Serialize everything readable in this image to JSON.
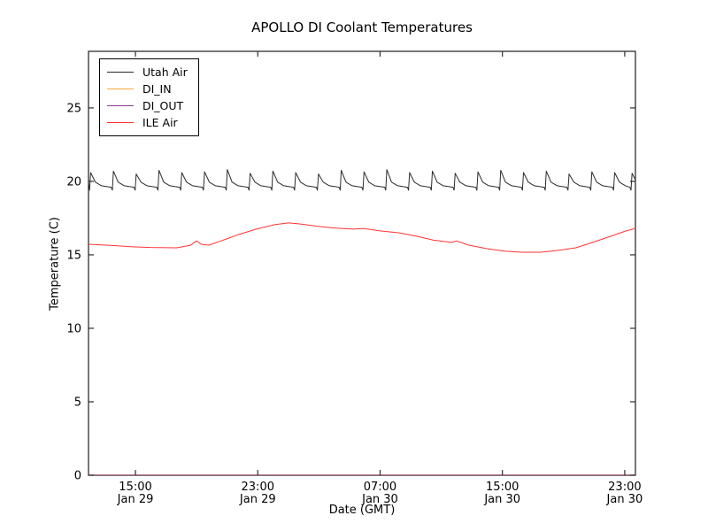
{
  "window": {
    "background": "#ffffff"
  },
  "chart_data": {
    "type": "line",
    "title": "APOLLO DI Coolant Temperatures",
    "xlabel": "Date (GMT)",
    "ylabel": "Temperature (C)",
    "x_unit": "hours since Jan 29 00:00 GMT",
    "xlim": [
      11.93,
      47.7
    ],
    "ylim": [
      0,
      28.85
    ],
    "grid": false,
    "legend_position": "upper-left",
    "axis_color": "#2e2e2e",
    "x_ticks": [
      {
        "value": 15,
        "line1": "15:00",
        "line2": "Jan 29"
      },
      {
        "value": 23,
        "line1": "23:00",
        "line2": "Jan 29"
      },
      {
        "value": 31,
        "line1": "07:00",
        "line2": "Jan 30"
      },
      {
        "value": 39,
        "line1": "15:00",
        "line2": "Jan 30"
      },
      {
        "value": 47,
        "line1": "23:00",
        "line2": "Jan 30"
      }
    ],
    "y_ticks": [
      0,
      5,
      10,
      15,
      20,
      25
    ],
    "series": [
      {
        "name": "Utah Air",
        "color": "#2b2b2b",
        "width": 1,
        "opacity": 1,
        "points": [
          [
            11.93,
            19.9
          ],
          [
            12.0,
            19.4
          ],
          [
            12.07,
            20.6
          ],
          [
            12.38,
            19.95
          ],
          [
            12.78,
            19.7
          ],
          [
            13.42,
            19.6
          ],
          [
            13.49,
            19.4
          ],
          [
            13.56,
            20.7
          ],
          [
            13.87,
            19.95
          ],
          [
            14.27,
            19.7
          ],
          [
            14.91,
            19.6
          ],
          [
            14.98,
            19.4
          ],
          [
            15.05,
            20.5
          ],
          [
            15.36,
            19.95
          ],
          [
            15.76,
            19.7
          ],
          [
            16.4,
            19.6
          ],
          [
            16.47,
            19.4
          ],
          [
            16.54,
            20.75
          ],
          [
            16.85,
            19.95
          ],
          [
            17.25,
            19.7
          ],
          [
            17.89,
            19.6
          ],
          [
            17.96,
            19.4
          ],
          [
            18.03,
            20.6
          ],
          [
            18.34,
            19.95
          ],
          [
            18.74,
            19.7
          ],
          [
            19.38,
            19.6
          ],
          [
            19.45,
            19.4
          ],
          [
            19.52,
            20.65
          ],
          [
            19.83,
            19.95
          ],
          [
            20.23,
            19.7
          ],
          [
            20.87,
            19.6
          ],
          [
            20.94,
            19.4
          ],
          [
            21.01,
            20.8
          ],
          [
            21.32,
            19.95
          ],
          [
            21.72,
            19.7
          ],
          [
            22.36,
            19.6
          ],
          [
            22.43,
            19.4
          ],
          [
            22.5,
            20.55
          ],
          [
            22.81,
            19.95
          ],
          [
            23.21,
            19.7
          ],
          [
            23.85,
            19.6
          ],
          [
            23.92,
            19.4
          ],
          [
            23.99,
            20.7
          ],
          [
            24.3,
            19.95
          ],
          [
            24.7,
            19.7
          ],
          [
            25.34,
            19.6
          ],
          [
            25.41,
            19.4
          ],
          [
            25.48,
            20.6
          ],
          [
            25.79,
            19.95
          ],
          [
            26.19,
            19.7
          ],
          [
            26.83,
            19.6
          ],
          [
            26.9,
            19.4
          ],
          [
            26.97,
            20.5
          ],
          [
            27.28,
            19.95
          ],
          [
            27.68,
            19.7
          ],
          [
            28.32,
            19.6
          ],
          [
            28.39,
            19.4
          ],
          [
            28.46,
            20.75
          ],
          [
            28.77,
            19.95
          ],
          [
            29.17,
            19.7
          ],
          [
            29.81,
            19.6
          ],
          [
            29.88,
            19.4
          ],
          [
            29.95,
            20.65
          ],
          [
            30.26,
            19.95
          ],
          [
            30.66,
            19.7
          ],
          [
            31.3,
            19.6
          ],
          [
            31.37,
            19.4
          ],
          [
            31.44,
            20.8
          ],
          [
            31.75,
            19.95
          ],
          [
            32.15,
            19.7
          ],
          [
            32.79,
            19.6
          ],
          [
            32.86,
            19.4
          ],
          [
            32.93,
            20.6
          ],
          [
            33.24,
            19.95
          ],
          [
            33.64,
            19.7
          ],
          [
            34.28,
            19.6
          ],
          [
            34.35,
            19.4
          ],
          [
            34.42,
            20.7
          ],
          [
            34.73,
            19.95
          ],
          [
            35.13,
            19.7
          ],
          [
            35.77,
            19.6
          ],
          [
            35.84,
            19.4
          ],
          [
            35.91,
            20.55
          ],
          [
            36.22,
            19.95
          ],
          [
            36.62,
            19.7
          ],
          [
            37.26,
            19.6
          ],
          [
            37.33,
            19.4
          ],
          [
            37.4,
            20.65
          ],
          [
            37.71,
            19.95
          ],
          [
            38.11,
            19.7
          ],
          [
            38.75,
            19.6
          ],
          [
            38.82,
            19.4
          ],
          [
            38.89,
            20.75
          ],
          [
            39.2,
            19.95
          ],
          [
            39.6,
            19.7
          ],
          [
            40.24,
            19.6
          ],
          [
            40.31,
            19.4
          ],
          [
            40.38,
            20.6
          ],
          [
            40.69,
            19.95
          ],
          [
            41.09,
            19.7
          ],
          [
            41.73,
            19.6
          ],
          [
            41.8,
            19.4
          ],
          [
            41.87,
            20.7
          ],
          [
            42.18,
            19.95
          ],
          [
            42.58,
            19.7
          ],
          [
            43.22,
            19.6
          ],
          [
            43.29,
            19.4
          ],
          [
            43.36,
            20.5
          ],
          [
            43.67,
            19.95
          ],
          [
            44.07,
            19.7
          ],
          [
            44.71,
            19.6
          ],
          [
            44.78,
            19.4
          ],
          [
            44.85,
            20.65
          ],
          [
            45.16,
            19.95
          ],
          [
            45.56,
            19.7
          ],
          [
            46.2,
            19.6
          ],
          [
            46.27,
            19.4
          ],
          [
            46.34,
            20.6
          ],
          [
            46.65,
            19.95
          ],
          [
            47.05,
            19.7
          ],
          [
            47.34,
            19.6
          ],
          [
            47.41,
            19.4
          ],
          [
            47.48,
            20.55
          ],
          [
            47.7,
            20.1
          ]
        ]
      },
      {
        "name": "DI_IN",
        "color": "#ffa643",
        "width": 1.6,
        "opacity": 1,
        "points": [
          [
            11.93,
            0
          ],
          [
            47.7,
            0
          ]
        ]
      },
      {
        "name": "DI_OUT",
        "color": "#8a3b8f",
        "width": 1.3,
        "opacity": 0.85,
        "points": [
          [
            11.93,
            0
          ],
          [
            47.7,
            0
          ]
        ]
      },
      {
        "name": "ILE Air",
        "color": "#ff3333",
        "width": 1,
        "opacity": 1,
        "points": [
          [
            11.93,
            15.72
          ],
          [
            13.1,
            15.66
          ],
          [
            14.8,
            15.55
          ],
          [
            16.0,
            15.5
          ],
          [
            17.7,
            15.48
          ],
          [
            18.6,
            15.65
          ],
          [
            19.0,
            15.95
          ],
          [
            19.3,
            15.72
          ],
          [
            19.8,
            15.66
          ],
          [
            20.6,
            15.95
          ],
          [
            21.8,
            16.4
          ],
          [
            22.9,
            16.75
          ],
          [
            24.1,
            17.05
          ],
          [
            25.0,
            17.17
          ],
          [
            25.8,
            17.1
          ],
          [
            27.0,
            16.93
          ],
          [
            28.1,
            16.82
          ],
          [
            29.3,
            16.75
          ],
          [
            29.9,
            16.8
          ],
          [
            31.0,
            16.63
          ],
          [
            32.2,
            16.5
          ],
          [
            33.4,
            16.27
          ],
          [
            34.5,
            16.0
          ],
          [
            35.7,
            15.85
          ],
          [
            36.0,
            15.95
          ],
          [
            36.8,
            15.66
          ],
          [
            38.0,
            15.42
          ],
          [
            39.1,
            15.25
          ],
          [
            40.3,
            15.18
          ],
          [
            41.5,
            15.18
          ],
          [
            42.6,
            15.3
          ],
          [
            43.8,
            15.48
          ],
          [
            44.9,
            15.85
          ],
          [
            46.1,
            16.27
          ],
          [
            47.0,
            16.6
          ],
          [
            47.7,
            16.8
          ]
        ]
      }
    ]
  }
}
